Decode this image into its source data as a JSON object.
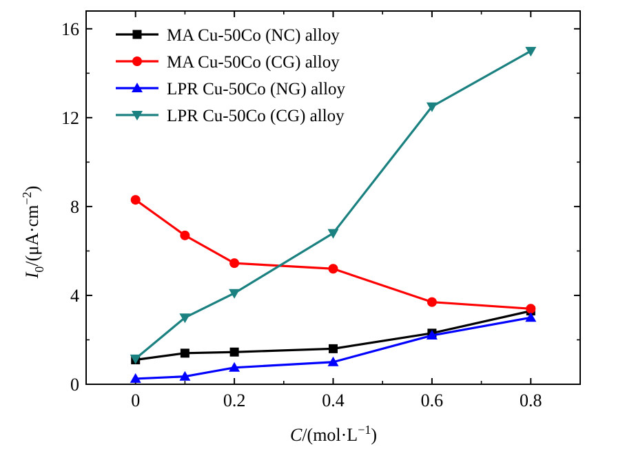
{
  "chart_data": {
    "type": "line",
    "xlabel": {
      "var": "C",
      "rest": "/(mol·L",
      "sup": "−1",
      "close": ")"
    },
    "ylabel": {
      "var": "I",
      "sub": "0",
      "rest": "/(μA·cm",
      "sup": "−2",
      "close": ")"
    },
    "xlim": [
      -0.1,
      0.9
    ],
    "ylim": [
      0,
      16.8
    ],
    "xticks": [
      0,
      0.2,
      0.4,
      0.6,
      0.8
    ],
    "xtick_labels": [
      "0",
      "0.2",
      "0.4",
      "0.6",
      "0.8"
    ],
    "yticks": [
      0,
      4,
      8,
      12,
      16
    ],
    "ytick_labels": [
      "0",
      "4",
      "8",
      "12",
      "16"
    ],
    "legend_position": "top-left",
    "x": [
      0,
      0.1,
      0.2,
      0.4,
      0.6,
      0.8
    ],
    "series": [
      {
        "name": "MA Cu-50Co (NC) alloy",
        "color": "#000000",
        "marker": "square",
        "values": [
          1.1,
          1.4,
          1.45,
          1.6,
          2.3,
          3.3
        ]
      },
      {
        "name": "MA Cu-50Co (CG) alloy",
        "color": "#ff0000",
        "marker": "circle",
        "values": [
          8.3,
          6.7,
          5.45,
          5.2,
          3.7,
          3.4
        ]
      },
      {
        "name": "LPR Cu-50Co (NG) alloy",
        "color": "#0000ff",
        "marker": "triangle-up",
        "values": [
          0.25,
          0.35,
          0.75,
          1.0,
          2.2,
          3.0
        ]
      },
      {
        "name": "LPR Cu-50Co (CG) alloy",
        "color": "#1a8080",
        "marker": "triangle-down",
        "values": [
          1.15,
          3.0,
          4.1,
          6.8,
          12.5,
          15.0
        ]
      }
    ]
  }
}
